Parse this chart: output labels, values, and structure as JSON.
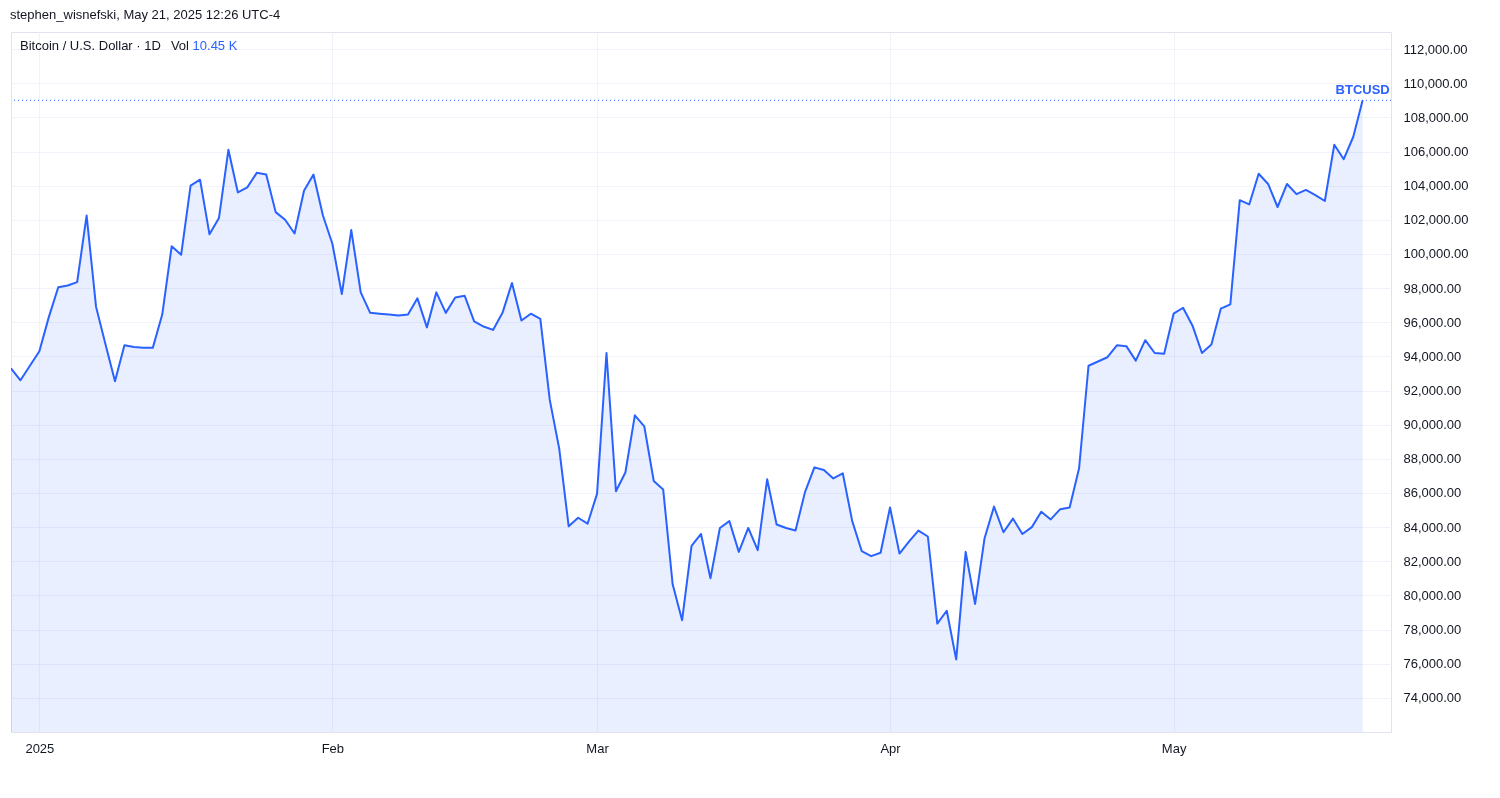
{
  "chart_data": {
    "type": "area",
    "title": "Bitcoin / U.S. Dollar · 1D",
    "annotations": [
      "stephen_wisnefski, May 21, 2025 12:26 UTC-4",
      "Vol 10.45 K"
    ],
    "x": [
      "2024-12-29",
      "2024-12-30",
      "2024-12-31",
      "2025-01-01",
      "2025-01-02",
      "2025-01-03",
      "2025-01-04",
      "2025-01-05",
      "2025-01-06",
      "2025-01-07",
      "2025-01-08",
      "2025-01-09",
      "2025-01-10",
      "2025-01-11",
      "2025-01-12",
      "2025-01-13",
      "2025-01-14",
      "2025-01-15",
      "2025-01-16",
      "2025-01-17",
      "2025-01-18",
      "2025-01-19",
      "2025-01-20",
      "2025-01-21",
      "2025-01-22",
      "2025-01-23",
      "2025-01-24",
      "2025-01-25",
      "2025-01-26",
      "2025-01-27",
      "2025-01-28",
      "2025-01-29",
      "2025-01-30",
      "2025-01-31",
      "2025-02-01",
      "2025-02-02",
      "2025-02-03",
      "2025-02-04",
      "2025-02-05",
      "2025-02-06",
      "2025-02-07",
      "2025-02-08",
      "2025-02-09",
      "2025-02-10",
      "2025-02-11",
      "2025-02-12",
      "2025-02-13",
      "2025-02-14",
      "2025-02-15",
      "2025-02-16",
      "2025-02-17",
      "2025-02-18",
      "2025-02-19",
      "2025-02-20",
      "2025-02-21",
      "2025-02-22",
      "2025-02-23",
      "2025-02-24",
      "2025-02-25",
      "2025-02-26",
      "2025-02-27",
      "2025-02-28",
      "2025-03-01",
      "2025-03-02",
      "2025-03-03",
      "2025-03-04",
      "2025-03-05",
      "2025-03-06",
      "2025-03-07",
      "2025-03-08",
      "2025-03-09",
      "2025-03-10",
      "2025-03-11",
      "2025-03-12",
      "2025-03-13",
      "2025-03-14",
      "2025-03-15",
      "2025-03-16",
      "2025-03-17",
      "2025-03-18",
      "2025-03-19",
      "2025-03-20",
      "2025-03-21",
      "2025-03-22",
      "2025-03-23",
      "2025-03-24",
      "2025-03-25",
      "2025-03-26",
      "2025-03-27",
      "2025-03-28",
      "2025-03-29",
      "2025-03-30",
      "2025-03-31",
      "2025-04-01",
      "2025-04-02",
      "2025-04-03",
      "2025-04-04",
      "2025-04-05",
      "2025-04-06",
      "2025-04-07",
      "2025-04-08",
      "2025-04-09",
      "2025-04-10",
      "2025-04-11",
      "2025-04-12",
      "2025-04-13",
      "2025-04-14",
      "2025-04-15",
      "2025-04-16",
      "2025-04-17",
      "2025-04-18",
      "2025-04-19",
      "2025-04-20",
      "2025-04-21",
      "2025-04-22",
      "2025-04-23",
      "2025-04-24",
      "2025-04-25",
      "2025-04-26",
      "2025-04-27",
      "2025-04-28",
      "2025-04-29",
      "2025-04-30",
      "2025-05-01",
      "2025-05-02",
      "2025-05-03",
      "2025-05-04",
      "2025-05-05",
      "2025-05-06",
      "2025-05-07",
      "2025-05-08",
      "2025-05-09",
      "2025-05-10",
      "2025-05-11",
      "2025-05-12",
      "2025-05-13",
      "2025-05-14",
      "2025-05-15",
      "2025-05-16",
      "2025-05-17",
      "2025-05-18",
      "2025-05-19",
      "2025-05-20",
      "2025-05-21"
    ],
    "series": [
      {
        "color": "#2962ff",
        "values": [
          93300,
          92600,
          93450,
          94300,
          96300,
          98050,
          98150,
          98350,
          102250,
          96900,
          94700,
          92550,
          94650,
          94550,
          94500,
          94500,
          96450,
          100450,
          99950,
          104000,
          104350,
          101150,
          102100,
          106100,
          103600,
          103900,
          104750,
          104650,
          102450,
          102000,
          101200,
          103700,
          104650,
          102250,
          100600,
          97650,
          101400,
          97750,
          96550,
          96500,
          96450,
          96400,
          96450,
          97400,
          95700,
          97750,
          96550,
          97450,
          97550,
          96050,
          95750,
          95550,
          96550,
          98300,
          96100,
          96500,
          96200,
          91450,
          88600,
          84050,
          84550,
          84200,
          85950,
          94200,
          86100,
          87200,
          90550,
          89900,
          86700,
          86200,
          80650,
          78550,
          82900,
          83600,
          81000,
          83950,
          84350,
          82550,
          83950,
          82650,
          86800,
          84150,
          83950,
          83800,
          86050,
          87500,
          87350,
          86850,
          87150,
          84350,
          82600,
          82300,
          82500,
          85150,
          82450,
          83150,
          83800,
          83450,
          78350,
          79100,
          76250,
          82550,
          79500,
          83350,
          85200,
          83700,
          84500,
          83600,
          84000,
          84900,
          84450,
          85050,
          85150,
          87450,
          93450,
          93700,
          93950,
          94650,
          94600,
          93750,
          94950,
          94200,
          94150,
          96500,
          96850,
          95800,
          94200,
          94700,
          96800,
          97050,
          103150,
          102900,
          104700,
          104100,
          102750,
          104100,
          103500,
          103750,
          103450,
          103100,
          106400,
          105550,
          106850,
          109000
        ]
      }
    ],
    "xlim": [
      "2024-12-29",
      "2025-05-24"
    ],
    "xticks": [
      {
        "value": "2025-01-01",
        "label": "2025"
      },
      {
        "value": "2025-02-01",
        "label": "Feb"
      },
      {
        "value": "2025-03-01",
        "label": "Mar"
      },
      {
        "value": "2025-04-01",
        "label": "Apr"
      },
      {
        "value": "2025-05-01",
        "label": "May"
      }
    ],
    "ylim": [
      72000,
      113000
    ],
    "yticks": [
      {
        "value": 74000,
        "label": "74,000.00"
      },
      {
        "value": 76000,
        "label": "76,000.00"
      },
      {
        "value": 78000,
        "label": "78,000.00"
      },
      {
        "value": 80000,
        "label": "80,000.00"
      },
      {
        "value": 82000,
        "label": "82,000.00"
      },
      {
        "value": 84000,
        "label": "84,000.00"
      },
      {
        "value": 86000,
        "label": "86,000.00"
      },
      {
        "value": 88000,
        "label": "88,000.00"
      },
      {
        "value": 90000,
        "label": "90,000.00"
      },
      {
        "value": 92000,
        "label": "92,000.00"
      },
      {
        "value": 94000,
        "label": "94,000.00"
      },
      {
        "value": 96000,
        "label": "96,000.00"
      },
      {
        "value": 98000,
        "label": "98,000.00"
      },
      {
        "value": 100000,
        "label": "100,000.00"
      },
      {
        "value": 102000,
        "label": "102,000.00"
      },
      {
        "value": 104000,
        "label": "104,000.00"
      },
      {
        "value": 106000,
        "label": "106,000.00"
      },
      {
        "value": 108000,
        "label": "108,000.00"
      },
      {
        "value": 110000,
        "label": "110,000.00"
      },
      {
        "value": 112000,
        "label": "112,000.00"
      }
    ],
    "ref_lines": [
      {
        "axis": "y",
        "value": 109000,
        "label": "BTCUSD",
        "color": "#2962ff",
        "line_style": "dotted"
      }
    ],
    "grid": true,
    "line_style": "solid"
  }
}
